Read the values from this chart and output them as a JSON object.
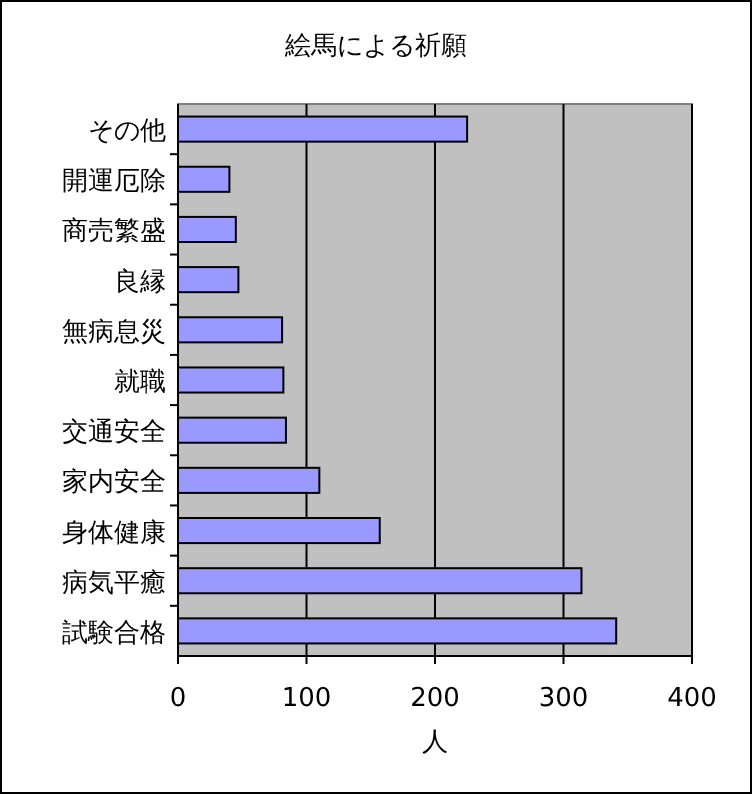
{
  "chart_data": {
    "type": "bar",
    "orientation": "horizontal",
    "title": "絵馬による祈願",
    "xlabel": "人",
    "categories": [
      "その他",
      "開運厄除",
      "商売繁盛",
      "良縁",
      "無病息災",
      "就職",
      "交通安全",
      "家内安全",
      "身体健康",
      "病気平癒",
      "試験合格"
    ],
    "values": [
      225,
      40,
      45,
      47,
      81,
      82,
      84,
      110,
      157,
      314,
      341
    ],
    "color": "#9999ff",
    "xlim": [
      0,
      400
    ],
    "xticks": [
      0,
      100,
      200,
      300,
      400
    ],
    "grid": "x"
  }
}
